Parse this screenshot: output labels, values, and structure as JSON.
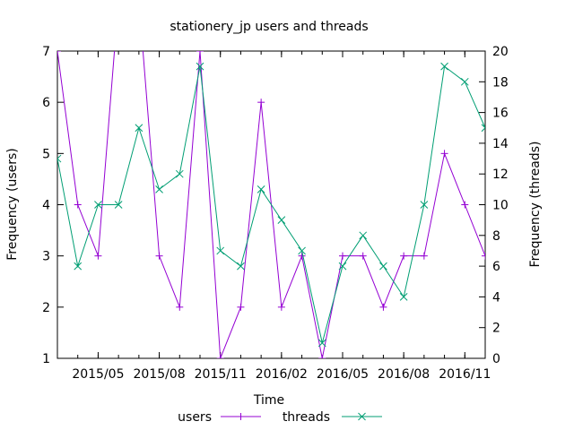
{
  "chart_data": {
    "type": "line",
    "title": "stationery_jp users and threads",
    "xlabel": "Time",
    "ylabel_left": "Frequency (users)",
    "ylabel_right": "Frequency (threads)",
    "ylim_left": [
      1,
      7
    ],
    "ylim_right": [
      0,
      20
    ],
    "xlim": [
      "2015-03",
      "2016-12"
    ],
    "y_ticks_left": [
      "1",
      "2",
      "3",
      "4",
      "5",
      "6",
      "7"
    ],
    "y_ticks_right": [
      "0",
      "2",
      "4",
      "6",
      "8",
      "10",
      "12",
      "14",
      "16",
      "18",
      "20"
    ],
    "x_ticks": [
      {
        "date": "2015-05",
        "label": "2015/05"
      },
      {
        "date": "2015-08",
        "label": "2015/08"
      },
      {
        "date": "2015-11",
        "label": "2015/11"
      },
      {
        "date": "2016-02",
        "label": "2016/02"
      },
      {
        "date": "2016-05",
        "label": "2016/05"
      },
      {
        "date": "2016-08",
        "label": "2016/08"
      },
      {
        "date": "2016-11",
        "label": "2016/11"
      }
    ],
    "x": [
      "2015-03",
      "2015-04",
      "2015-05",
      "2015-06",
      "2015-07",
      "2015-08",
      "2015-09",
      "2015-10",
      "2015-11",
      "2015-12",
      "2016-01",
      "2016-02",
      "2016-03",
      "2016-04",
      "2016-05",
      "2016-06",
      "2016-07",
      "2016-08",
      "2016-09",
      "2016-10",
      "2016-11",
      "2016-12"
    ],
    "legend_placement": "bottom",
    "grid": false,
    "series": [
      {
        "name": "users",
        "axis": "left",
        "color": "#9400d3",
        "marker": "plus",
        "values": [
          7,
          4,
          3,
          8,
          8,
          3,
          2,
          7,
          1,
          2,
          6,
          2,
          3,
          1,
          3,
          3,
          2,
          3,
          3,
          5,
          4,
          3
        ]
      },
      {
        "name": "threads",
        "axis": "right",
        "color": "#009e73",
        "marker": "cross",
        "values": [
          13,
          6,
          10,
          10,
          15,
          11,
          12,
          19,
          7,
          6,
          11,
          9,
          7,
          1,
          6,
          8,
          6,
          4,
          10,
          19,
          18,
          15
        ]
      }
    ]
  }
}
